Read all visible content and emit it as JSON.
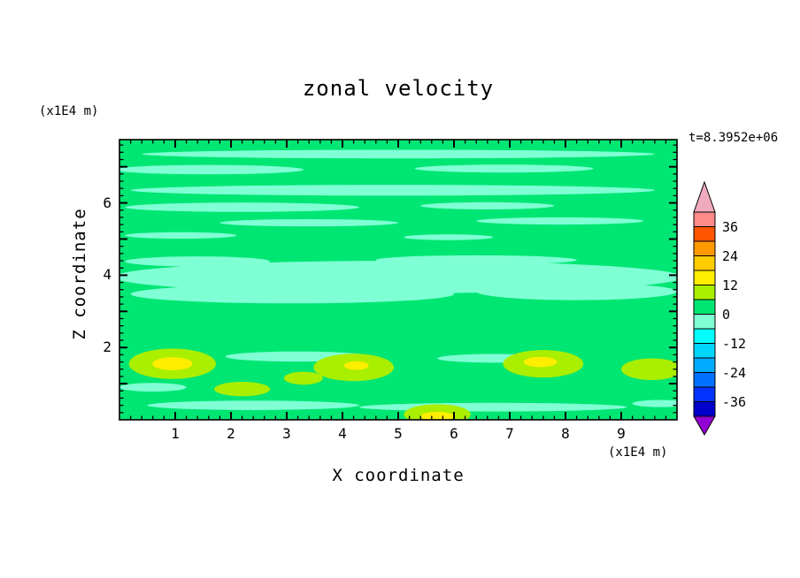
{
  "title": "zonal velocity",
  "time_label": "t=8.3952e+06",
  "x_axis": {
    "label": "X coordinate",
    "unit": "(x1E4 m)",
    "range": [
      0,
      10
    ],
    "major_step": 1,
    "minor_step": 0.2,
    "tick_labels": [
      1,
      2,
      3,
      4,
      5,
      6,
      7,
      8,
      9
    ]
  },
  "y_axis": {
    "label": "Z coordinate",
    "unit": "(x1E4 m)",
    "range": [
      0,
      7.75
    ],
    "major_step": 1,
    "minor_step": 0.2,
    "tick_labels": [
      2,
      4,
      6
    ]
  },
  "colorbar": {
    "tick_labels": [
      36,
      24,
      12,
      0,
      -12,
      -24,
      -36
    ],
    "range": [
      -42,
      42
    ],
    "segments": [
      {
        "range": [
          -42,
          -36
        ],
        "color": "#0000cd"
      },
      {
        "range": [
          -36,
          -30
        ],
        "color": "#0033ff"
      },
      {
        "range": [
          -30,
          -24
        ],
        "color": "#0070ff"
      },
      {
        "range": [
          -24,
          -18
        ],
        "color": "#00aaff"
      },
      {
        "range": [
          -18,
          -12
        ],
        "color": "#00d5ff"
      },
      {
        "range": [
          -12,
          -6
        ],
        "color": "#00ffff"
      },
      {
        "range": [
          -6,
          0
        ],
        "color": "#7fffd4"
      },
      {
        "range": [
          0,
          6
        ],
        "color": "#00e673"
      },
      {
        "range": [
          6,
          12
        ],
        "color": "#aaee00"
      },
      {
        "range": [
          12,
          18
        ],
        "color": "#ffee00"
      },
      {
        "range": [
          18,
          24
        ],
        "color": "#ffcc00"
      },
      {
        "range": [
          24,
          30
        ],
        "color": "#ff9900"
      },
      {
        "range": [
          30,
          36
        ],
        "color": "#ff5500"
      },
      {
        "range": [
          36,
          42
        ],
        "color": "#ff8a8a"
      }
    ],
    "arrow_top": {
      "color": "#f0aabe"
    },
    "arrow_bottom": {
      "color": "#9400d3"
    }
  },
  "chart_data": {
    "type": "contour",
    "title": "zonal velocity",
    "xlabel": "X coordinate (x1E4 m)",
    "ylabel": "Z coordinate (x1E4 m)",
    "time": "t=8.3952e+06",
    "x_range": [
      0,
      10
    ],
    "z_range": [
      0,
      7.75
    ],
    "contour_interval": 6,
    "levels": [
      -42,
      -36,
      -30,
      -24,
      -18,
      -12,
      -6,
      0,
      6,
      12,
      18,
      24,
      30,
      36,
      42
    ],
    "background": {
      "value_range": [
        0,
        6
      ],
      "color": "#00e673"
    },
    "feature_groups": [
      {
        "name": "negative-streaks",
        "value_range": [
          -6,
          0
        ],
        "color": "#7fffd4",
        "ellipses": [
          [
            5.0,
            7.35,
            4.6,
            0.12
          ],
          [
            1.6,
            6.92,
            1.7,
            0.13
          ],
          [
            6.9,
            6.95,
            1.6,
            0.11
          ],
          [
            4.9,
            6.35,
            4.7,
            0.15
          ],
          [
            2.2,
            5.88,
            2.1,
            0.13
          ],
          [
            6.6,
            5.92,
            1.2,
            0.1
          ],
          [
            3.4,
            5.45,
            1.6,
            0.1
          ],
          [
            7.9,
            5.5,
            1.5,
            0.1
          ],
          [
            1.1,
            5.1,
            1.0,
            0.09
          ],
          [
            5.9,
            5.05,
            0.8,
            0.08
          ],
          [
            5.0,
            3.95,
            5.1,
            0.45
          ],
          [
            3.1,
            3.48,
            2.9,
            0.26
          ],
          [
            8.2,
            3.55,
            1.8,
            0.24
          ],
          [
            1.4,
            4.38,
            1.3,
            0.14
          ],
          [
            6.4,
            4.42,
            1.8,
            0.13
          ],
          [
            3.2,
            1.75,
            1.3,
            0.14
          ],
          [
            6.7,
            1.7,
            1.0,
            0.12
          ],
          [
            0.6,
            0.9,
            0.6,
            0.12
          ],
          [
            2.4,
            0.4,
            1.9,
            0.13
          ],
          [
            6.7,
            0.35,
            2.4,
            0.12
          ],
          [
            9.7,
            0.45,
            0.5,
            0.1
          ]
        ]
      },
      {
        "name": "positive-blobs",
        "value_range": [
          6,
          12
        ],
        "color": "#aaee00",
        "ellipses": [
          [
            0.95,
            1.55,
            0.78,
            0.42
          ],
          [
            4.2,
            1.45,
            0.72,
            0.38
          ],
          [
            7.6,
            1.55,
            0.72,
            0.38
          ],
          [
            5.7,
            0.15,
            0.6,
            0.28
          ],
          [
            9.55,
            1.4,
            0.55,
            0.3
          ],
          [
            2.2,
            0.85,
            0.5,
            0.2
          ],
          [
            3.3,
            1.15,
            0.35,
            0.18
          ]
        ]
      },
      {
        "name": "positive-cores",
        "value_range": [
          12,
          18
        ],
        "color": "#ffee00",
        "ellipses": [
          [
            0.95,
            1.55,
            0.36,
            0.18
          ],
          [
            4.25,
            1.5,
            0.22,
            0.12
          ],
          [
            7.55,
            1.6,
            0.3,
            0.14
          ],
          [
            5.7,
            0.1,
            0.3,
            0.12
          ]
        ]
      }
    ]
  }
}
